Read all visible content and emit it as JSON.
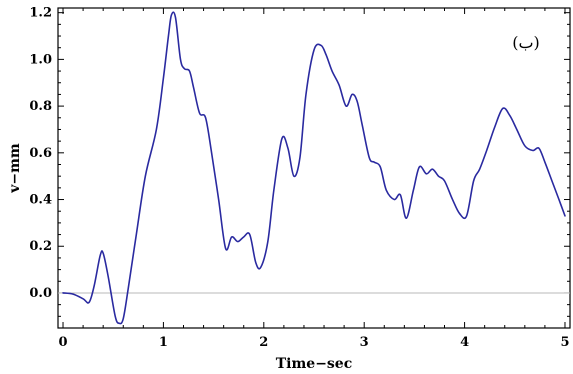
{
  "chart_data": {
    "type": "line",
    "xlabel": "Time−sec",
    "ylabel": "v−mm",
    "annotation": "(ب)",
    "xlim": [
      -0.05,
      5.05
    ],
    "ylim": [
      -0.15,
      1.22
    ],
    "xticks": [
      0,
      1,
      2,
      3,
      4,
      5
    ],
    "xtick_labels": [
      "0",
      "1",
      "2",
      "3",
      "4",
      "5"
    ],
    "yticks": [
      0.0,
      0.2,
      0.4,
      0.6,
      0.8,
      1.0,
      1.2
    ],
    "ytick_labels": [
      "0.0",
      "0.2",
      "0.4",
      "0.6",
      "0.8",
      "1.0",
      "1.2"
    ],
    "reference_line_y": 0.0,
    "line_color": "#2a2aa0",
    "reference_line_color": "#b8b8b8",
    "series": [
      {
        "x": [
          0.0,
          0.1,
          0.2,
          0.26,
          0.31,
          0.37,
          0.4,
          0.45,
          0.52,
          0.56,
          0.6,
          0.65,
          0.73,
          0.82,
          0.93,
          1.0,
          1.05,
          1.08,
          1.12,
          1.17,
          1.21,
          1.26,
          1.3,
          1.36,
          1.42,
          1.48,
          1.55,
          1.62,
          1.68,
          1.74,
          1.8,
          1.86,
          1.92,
          1.97,
          2.04,
          2.1,
          2.18,
          2.24,
          2.3,
          2.36,
          2.42,
          2.5,
          2.57,
          2.62,
          2.68,
          2.75,
          2.82,
          2.88,
          2.93,
          2.98,
          3.05,
          3.1,
          3.16,
          3.22,
          3.3,
          3.36,
          3.42,
          3.49,
          3.55,
          3.62,
          3.68,
          3.74,
          3.8,
          3.88,
          3.95,
          4.02,
          4.09,
          4.15,
          4.22,
          4.3,
          4.38,
          4.45,
          4.52,
          4.6,
          4.68,
          4.74,
          4.8,
          4.87,
          4.94,
          5.0
        ],
        "y": [
          0.0,
          -0.005,
          -0.025,
          -0.04,
          0.03,
          0.16,
          0.17,
          0.07,
          -0.1,
          -0.13,
          -0.11,
          0.02,
          0.25,
          0.5,
          0.7,
          0.92,
          1.1,
          1.19,
          1.18,
          1.0,
          0.96,
          0.95,
          0.88,
          0.77,
          0.75,
          0.6,
          0.4,
          0.19,
          0.24,
          0.22,
          0.24,
          0.25,
          0.13,
          0.11,
          0.22,
          0.44,
          0.66,
          0.62,
          0.5,
          0.58,
          0.85,
          1.04,
          1.06,
          1.02,
          0.95,
          0.89,
          0.8,
          0.85,
          0.82,
          0.72,
          0.58,
          0.56,
          0.54,
          0.44,
          0.4,
          0.42,
          0.32,
          0.44,
          0.54,
          0.51,
          0.53,
          0.5,
          0.48,
          0.4,
          0.34,
          0.33,
          0.48,
          0.53,
          0.61,
          0.71,
          0.79,
          0.76,
          0.7,
          0.63,
          0.61,
          0.62,
          0.56,
          0.48,
          0.4,
          0.33
        ]
      }
    ]
  }
}
